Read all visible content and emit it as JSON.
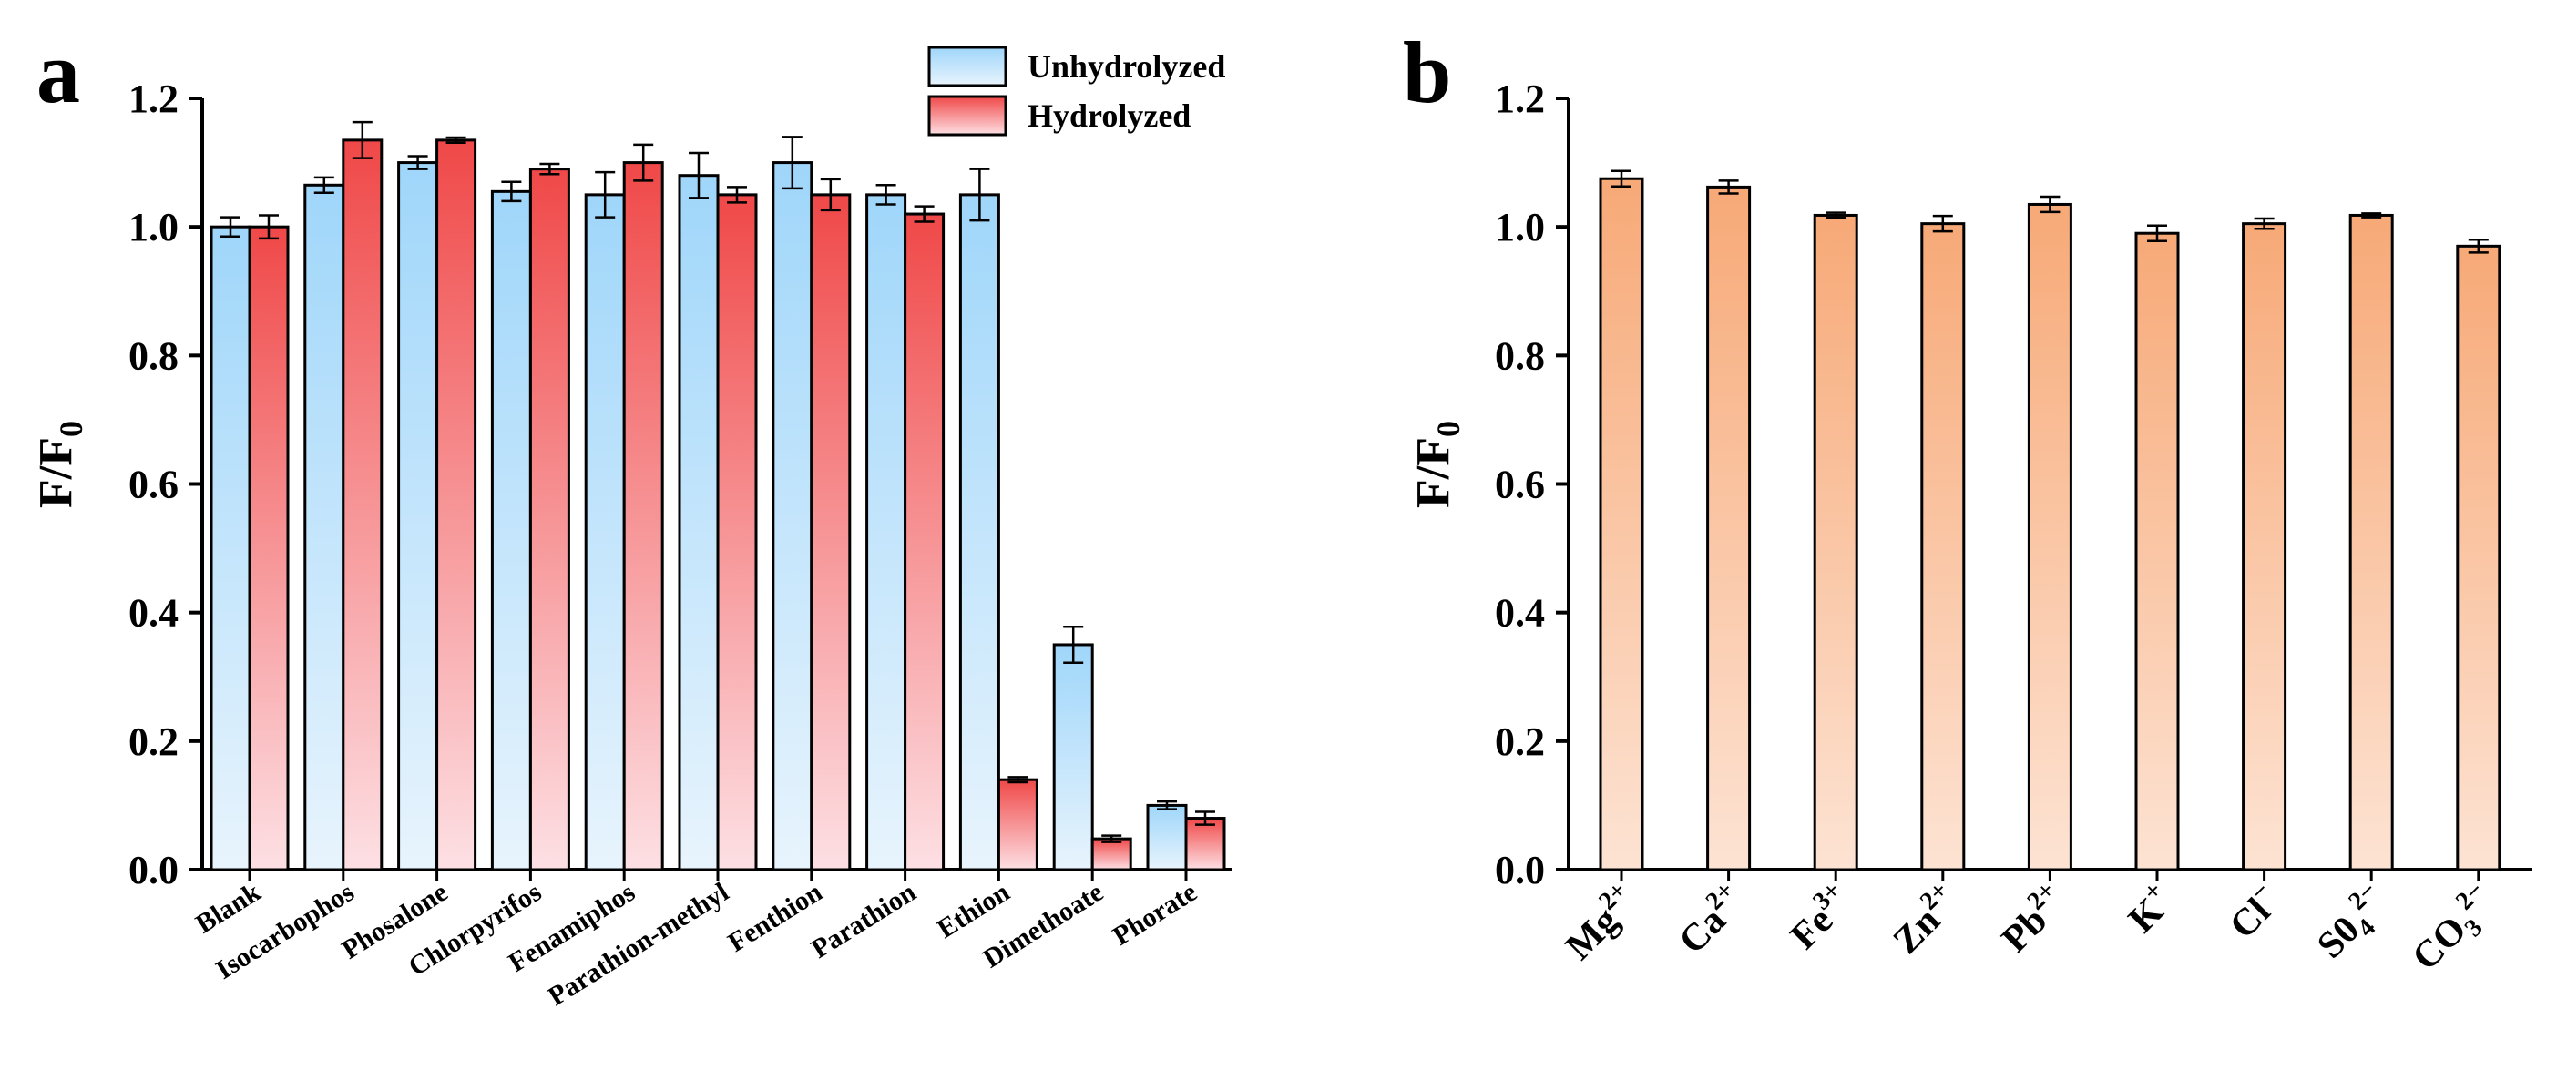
{
  "chart_data": [
    {
      "panel": "a",
      "type": "bar",
      "ylabel": "F/F",
      "ylabel_sub": "0",
      "ylim": [
        0,
        1.2
      ],
      "yticks": [
        "0.0",
        "0.2",
        "0.4",
        "0.6",
        "0.8",
        "1.0",
        "1.2"
      ],
      "categories": [
        "Blank",
        "Isocarbophos",
        "Phosalone",
        "Chlorpyrifos",
        "Fenamiphos",
        "Parathion-methyl",
        "Fenthion",
        "Parathion",
        "Ethion",
        "Dimethoate",
        "Phorate"
      ],
      "series": [
        {
          "name": "Unhydrolyzed",
          "color_top": "#9fd6fa",
          "color_bottom": "#e8f4fd",
          "values": [
            1.0,
            1.065,
            1.1,
            1.055,
            1.05,
            1.08,
            1.1,
            1.05,
            1.05,
            0.35,
            0.1
          ],
          "errors": [
            0.015,
            0.012,
            0.01,
            0.015,
            0.035,
            0.035,
            0.04,
            0.015,
            0.04,
            0.028,
            0.006
          ]
        },
        {
          "name": "Hydrolyzed",
          "color_top": "#f04848",
          "color_bottom": "#fde0e4",
          "values": [
            1.0,
            1.135,
            1.135,
            1.09,
            1.1,
            1.05,
            1.05,
            1.02,
            0.14,
            0.048,
            0.08
          ],
          "errors": [
            0.018,
            0.028,
            0.004,
            0.008,
            0.028,
            0.012,
            0.024,
            0.012,
            0.004,
            0.005,
            0.01
          ]
        }
      ],
      "legend": [
        "Unhydrolyzed",
        "Hydrolyzed"
      ],
      "legend_position": "top-right"
    },
    {
      "panel": "b",
      "type": "bar",
      "ylabel": "F/F",
      "ylabel_sub": "0",
      "ylim": [
        0,
        1.2
      ],
      "yticks": [
        "0.0",
        "0.2",
        "0.4",
        "0.6",
        "0.8",
        "1.0",
        "1.2"
      ],
      "categories": [
        {
          "base": "Mg",
          "sub": "",
          "sup": "2+"
        },
        {
          "base": "Ca",
          "sub": "",
          "sup": "2+"
        },
        {
          "base": "Fe",
          "sub": "",
          "sup": "3+"
        },
        {
          "base": "Zn",
          "sub": "",
          "sup": "2+"
        },
        {
          "base": "Pb",
          "sub": "",
          "sup": "2+"
        },
        {
          "base": "K",
          "sub": "",
          "sup": "+"
        },
        {
          "base": "Cl",
          "sub": "",
          "sup": "−"
        },
        {
          "base": "S0",
          "sub": "4",
          "sup": "2−"
        },
        {
          "base": "CO",
          "sub": "3",
          "sup": "2−"
        }
      ],
      "series": [
        {
          "name": "ions",
          "color_top": "#f7a977",
          "color_bottom": "#fde3d3",
          "values": [
            1.075,
            1.062,
            1.018,
            1.005,
            1.035,
            0.99,
            1.005,
            1.018,
            0.97
          ],
          "errors": [
            0.012,
            0.01,
            0.004,
            0.012,
            0.012,
            0.012,
            0.008,
            0.003,
            0.01
          ]
        }
      ]
    }
  ]
}
